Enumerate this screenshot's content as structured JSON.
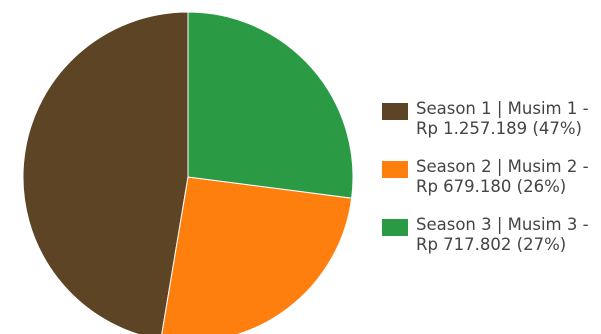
{
  "chart_data": {
    "type": "pie",
    "slices": [
      {
        "label": "Season 1 | Musim 1 -",
        "value_text": "Rp 1.257.189 (47%)",
        "value": 1257189,
        "percent": 47,
        "color": "#5c4425"
      },
      {
        "label": "Season 2 | Musim 2 -",
        "value_text": "Rp 679.180 (26%)",
        "value": 679180,
        "percent": 26,
        "color": "#ff7f0e"
      },
      {
        "label": "Season 3 | Musim 3 -",
        "value_text": "Rp 717.802 (27%)",
        "value": 717802,
        "percent": 27,
        "color": "#2a9a44"
      }
    ],
    "legend_position": "right",
    "start_angle": "top",
    "direction": "counter-clockwise"
  }
}
